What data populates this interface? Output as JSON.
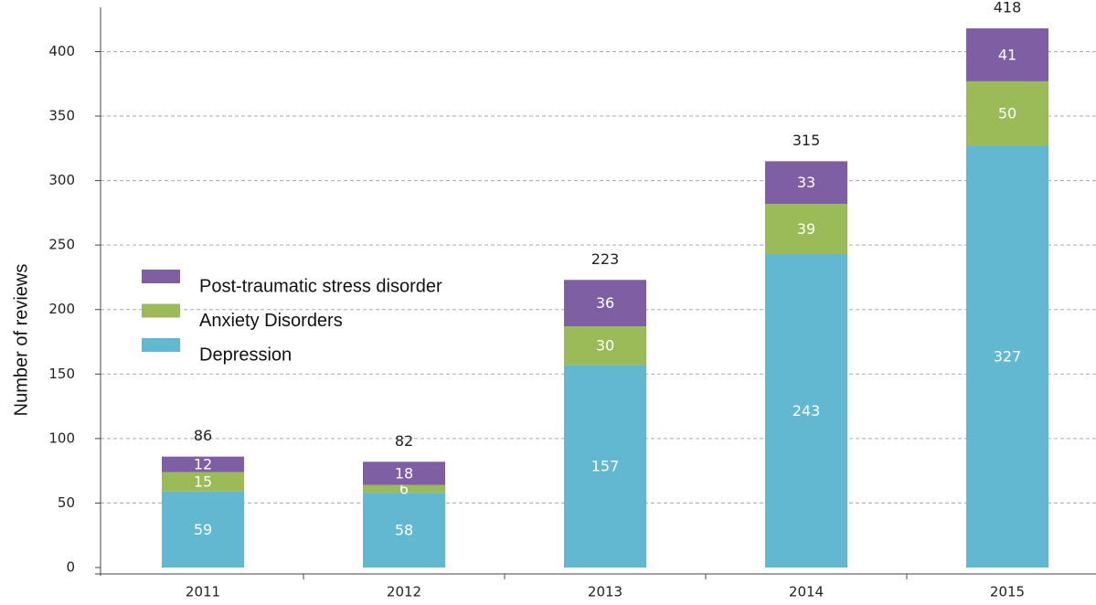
{
  "chart_data": {
    "type": "stacked-bar",
    "y_label": "Number of reviews",
    "categories": [
      "2011",
      "2012",
      "2013",
      "2014",
      "2015"
    ],
    "series": [
      {
        "name": "Depression",
        "color": "#62b8d1",
        "values": [
          59,
          58,
          157,
          243,
          327
        ]
      },
      {
        "name": "Anxiety Disorders",
        "color": "#9bbb59",
        "values": [
          15,
          6,
          30,
          39,
          50
        ]
      },
      {
        "name": "Post-traumatic stress disorder",
        "color": "#7e5fa3",
        "values": [
          12,
          18,
          36,
          33,
          41
        ]
      }
    ],
    "totals": [
      86,
      82,
      223,
      315,
      418
    ],
    "ylim": [
      0,
      440
    ],
    "yticks": [
      0,
      50,
      100,
      150,
      200,
      250,
      300,
      350,
      400
    ],
    "grid": true
  }
}
